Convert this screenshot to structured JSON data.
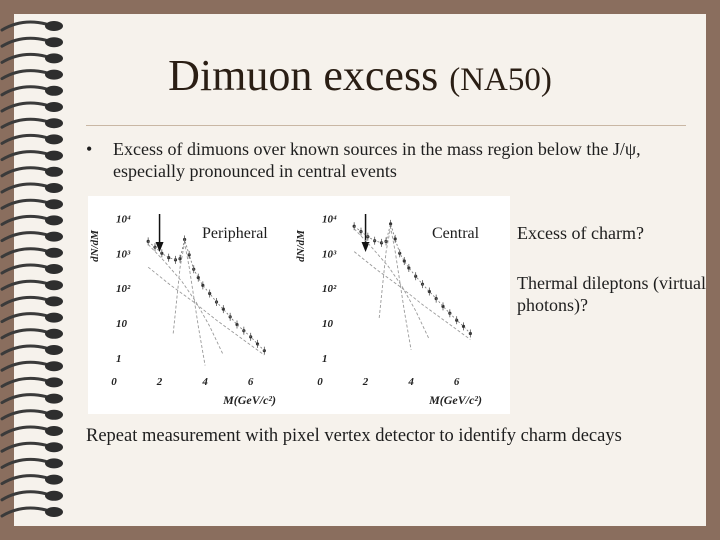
{
  "slide": {
    "title": "Dimuon excess",
    "title_suffix": "(NA50)",
    "bullet_symbol": "•",
    "bullet_text": "Excess of dimuons over known sources in the mass region below the J/ψ, especially pronounced in central events",
    "side_notes": [
      "Excess of charm?",
      "Thermal dileptons (virtual photons)?"
    ],
    "footer": "Repeat measurement with pixel vertex detector to identify charm decays"
  },
  "chart_data": [
    {
      "type": "scatter",
      "title": "Peripheral",
      "xlabel": "M(GeV/c²)",
      "ylabel": "dN/dM",
      "log_y": true,
      "xlim": [
        0,
        7.2
      ],
      "ylim": [
        0.3,
        20000
      ],
      "xticks": [
        "0",
        "2",
        "4",
        "6"
      ],
      "yticks": [
        "10⁴",
        "10³",
        "10²",
        "10",
        "1"
      ],
      "annotation": "arrow at M ≈ 2 GeV/c²",
      "series": [
        {
          "values": [
            [
              1.5,
              2200
            ],
            [
              1.8,
              1500
            ],
            [
              2.1,
              1000
            ],
            [
              2.4,
              750
            ],
            [
              2.7,
              650
            ],
            [
              2.9,
              700
            ],
            [
              3.1,
              2500
            ],
            [
              3.3,
              900
            ],
            [
              3.5,
              350
            ],
            [
              3.7,
              200
            ],
            [
              3.9,
              120
            ],
            [
              4.2,
              70
            ],
            [
              4.5,
              40
            ],
            [
              4.8,
              25
            ],
            [
              5.1,
              15
            ],
            [
              5.4,
              9
            ],
            [
              5.7,
              6
            ],
            [
              6.0,
              4
            ],
            [
              6.3,
              2.5
            ],
            [
              6.6,
              1.6
            ]
          ]
        }
      ]
    },
    {
      "type": "scatter",
      "title": "Central",
      "xlabel": "M(GeV/c²)",
      "ylabel": "dN/dM",
      "log_y": true,
      "xlim": [
        0,
        7.2
      ],
      "ylim": [
        0.3,
        20000
      ],
      "xticks": [
        "0",
        "2",
        "4",
        "6"
      ],
      "yticks": [
        "10⁴",
        "10³",
        "10²",
        "10",
        "1"
      ],
      "annotation": "arrow at M ≈ 2 GeV/c²",
      "series": [
        {
          "values": [
            [
              1.5,
              6000
            ],
            [
              1.8,
              4200
            ],
            [
              2.1,
              3000
            ],
            [
              2.4,
              2300
            ],
            [
              2.7,
              2000
            ],
            [
              2.9,
              2200
            ],
            [
              3.1,
              7000
            ],
            [
              3.3,
              2600
            ],
            [
              3.5,
              1000
            ],
            [
              3.7,
              600
            ],
            [
              3.9,
              380
            ],
            [
              4.2,
              220
            ],
            [
              4.5,
              130
            ],
            [
              4.8,
              80
            ],
            [
              5.1,
              50
            ],
            [
              5.4,
              30
            ],
            [
              5.7,
              19
            ],
            [
              6.0,
              12
            ],
            [
              6.3,
              8
            ],
            [
              6.6,
              5
            ]
          ]
        }
      ]
    }
  ]
}
